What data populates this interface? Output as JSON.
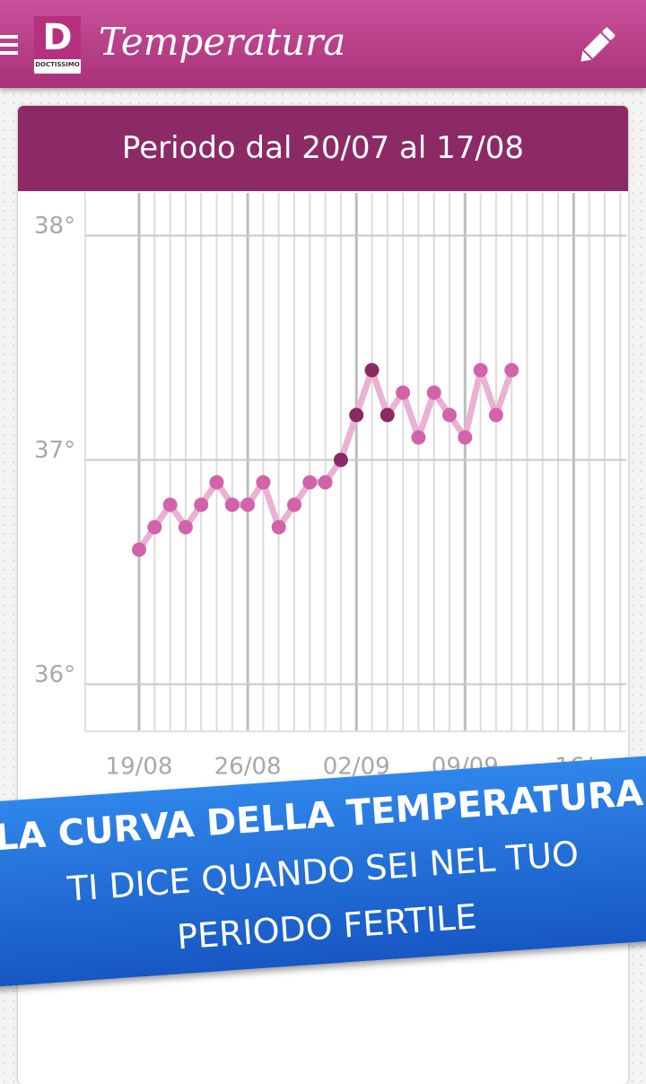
{
  "app_bar": {
    "logo": "D",
    "logo_caption": "DOCTISSIMO",
    "title": "Temperatura"
  },
  "card": {
    "title": "Periodo dal 20/07 al 17/08"
  },
  "chart_data": {
    "type": "line",
    "categories": [
      "19/08",
      null,
      null,
      null,
      null,
      null,
      null,
      "26/08",
      null,
      null,
      null,
      null,
      null,
      null,
      "02/09",
      null,
      null,
      null,
      null,
      null,
      null,
      "09/09",
      null,
      null,
      null,
      null,
      null,
      null,
      "16/",
      null,
      null,
      null
    ],
    "series": [
      {
        "color": "#ebb0d4",
        "values": [
          36.6,
          36.7,
          36.8,
          36.7,
          36.8,
          36.9,
          36.8,
          36.8,
          36.9,
          36.7,
          36.8,
          36.9,
          36.9,
          37.0,
          37.2,
          37.4,
          37.2,
          37.3,
          37.1,
          37.3,
          37.2,
          37.1,
          37.4,
          37.2,
          37.4,
          null,
          null,
          null,
          null,
          null,
          null,
          null
        ],
        "point_colors": [
          "#d263a9",
          "#d263a9",
          "#d263a9",
          "#d263a9",
          "#d263a9",
          "#d263a9",
          "#d263a9",
          "#d263a9",
          "#d263a9",
          "#d263a9",
          "#d263a9",
          "#d263a9",
          "#d263a9",
          "#8a2a62",
          "#8a2a62",
          "#8a2a62",
          "#8a2a62",
          "#d263a9",
          "#d263a9",
          "#d263a9",
          "#d263a9",
          "#d263a9",
          "#d263a9",
          "#d263a9",
          "#d263a9",
          null,
          null,
          null,
          null,
          null,
          null,
          null
        ]
      }
    ],
    "ylim": [
      35.79,
      38.19
    ],
    "yticks": [
      {
        "value": 36,
        "label": "36°"
      },
      {
        "value": 37,
        "label": "37°"
      },
      {
        "value": 38,
        "label": "38°"
      }
    ],
    "grid": true
  },
  "banner": {
    "lines": [
      "LA CURVA DELLA TEMPERATURA",
      "TI DICE QUANDO SEI NEL TUO",
      "PERIODO FERTILE"
    ]
  }
}
